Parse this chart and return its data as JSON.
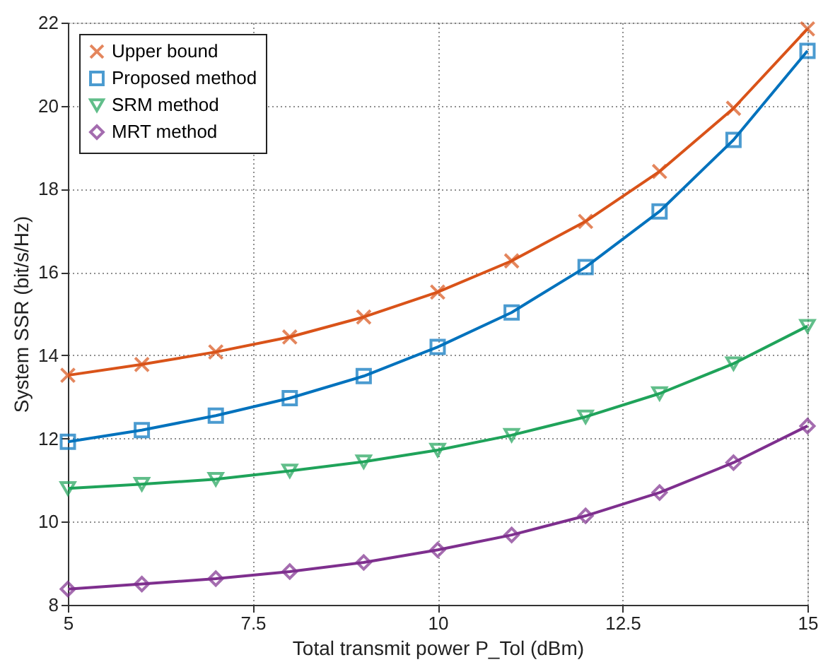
{
  "chart_data": {
    "type": "line",
    "xlabel": "Total transmit power P_Tol (dBm)",
    "ylabel": "System SSR (bit/s/Hz)",
    "x": [
      5,
      6,
      7,
      8,
      9,
      10,
      11,
      12,
      13,
      14,
      15
    ],
    "series": [
      {
        "name": "Upper bound",
        "color": "#d95319",
        "marker": "cross",
        "values": [
          13.52,
          13.78,
          14.08,
          14.44,
          14.92,
          15.52,
          16.27,
          17.22,
          18.42,
          19.94,
          21.85
        ]
      },
      {
        "name": "Proposed method",
        "color": "#0072bd",
        "marker": "square",
        "values": [
          11.92,
          12.2,
          12.55,
          12.97,
          13.5,
          14.2,
          15.03,
          16.12,
          17.46,
          19.18,
          21.32
        ]
      },
      {
        "name": "SRM method",
        "color": "#1fa35a",
        "marker": "triangle",
        "values": [
          10.8,
          10.9,
          11.02,
          11.22,
          11.44,
          11.72,
          12.08,
          12.52,
          13.08,
          13.8,
          14.7
        ]
      },
      {
        "name": "MRT method",
        "color": "#7e2f8e",
        "marker": "diamond",
        "values": [
          8.38,
          8.5,
          8.63,
          8.8,
          9.02,
          9.32,
          9.68,
          10.14,
          10.7,
          11.42,
          12.3
        ]
      }
    ],
    "xlim": [
      5,
      15
    ],
    "xticks": [
      5,
      7.5,
      10,
      12.5,
      15
    ],
    "ylim": [
      8,
      22
    ],
    "yticks": [
      8,
      10,
      12,
      14,
      16,
      18,
      20,
      22
    ],
    "grid": true,
    "legend": "top left",
    "line_style": "solid"
  }
}
